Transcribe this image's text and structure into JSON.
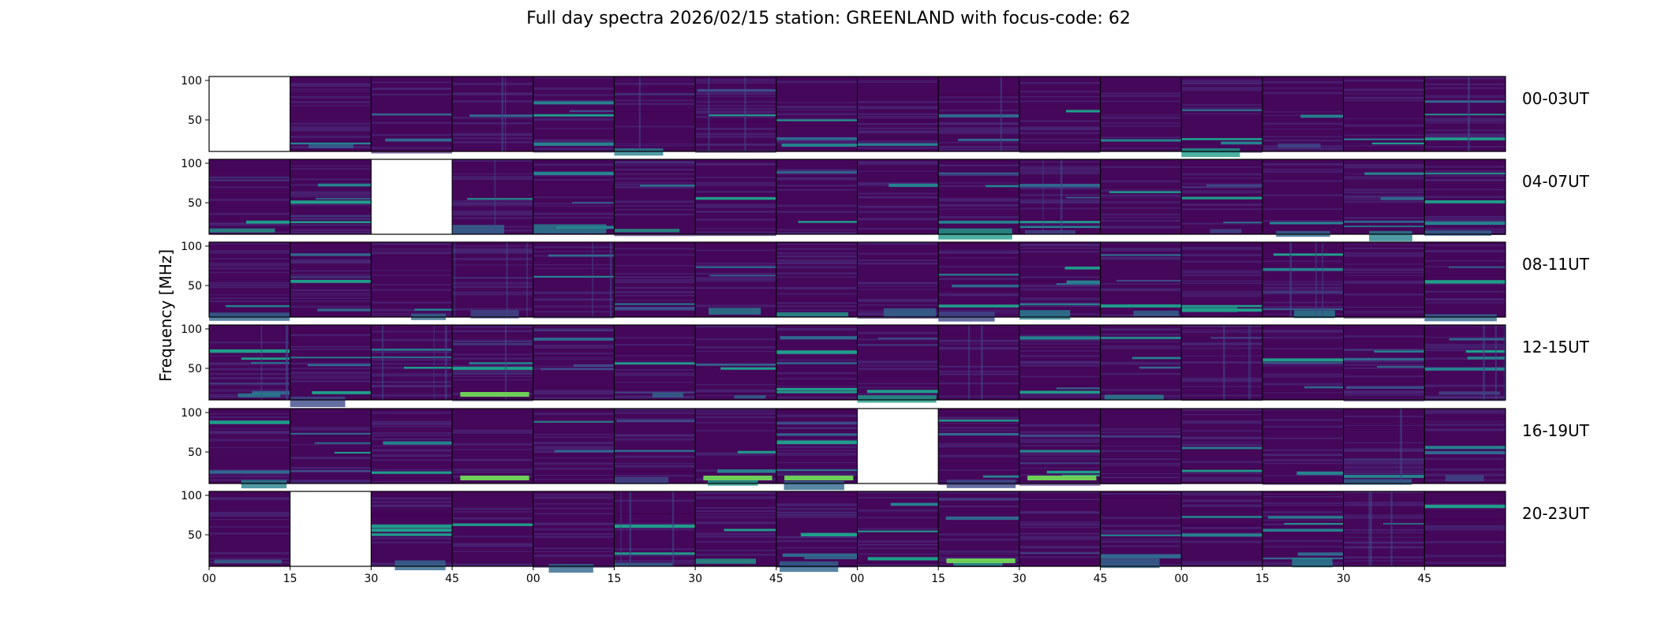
{
  "chart_data": {
    "type": "heatmap",
    "title": "Full day spectra 2026/02/15 station: GREENLAND with focus-code: 62",
    "ylabel": "Frequency [MHz]",
    "xlabel": "",
    "ylim": [
      10,
      105
    ],
    "yticks": [
      50,
      100
    ],
    "x_tick_labels": [
      "00",
      "15",
      "30",
      "45",
      "00",
      "15",
      "30",
      "45",
      "00",
      "15",
      "30",
      "45",
      "00",
      "15",
      "30",
      "45"
    ],
    "panels_per_row": 16,
    "row_labels": [
      "00-03UT",
      "04-07UT",
      "08-11UT",
      "12-15UT",
      "16-19UT",
      "20-23UT"
    ],
    "missing_panels": [
      [
        0,
        0
      ],
      [
        1,
        2
      ],
      [
        4,
        8
      ],
      [
        5,
        1
      ]
    ],
    "colormap": [
      "#440154",
      "#482878",
      "#3e4a89",
      "#31688e",
      "#26828e",
      "#1f9e89",
      "#35b779",
      "#6ece58",
      "#b5de2b",
      "#fde725"
    ],
    "background_color": "#45075a"
  }
}
